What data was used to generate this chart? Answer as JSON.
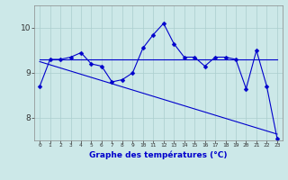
{
  "xlabel": "Graphe des températures (°C)",
  "background_color": "#cce8e8",
  "line_color": "#0000cc",
  "x_hours": [
    0,
    1,
    2,
    3,
    4,
    5,
    6,
    7,
    8,
    9,
    10,
    11,
    12,
    13,
    14,
    15,
    16,
    17,
    18,
    19,
    20,
    21,
    22,
    23
  ],
  "temp_main": [
    8.7,
    9.3,
    9.3,
    9.35,
    9.45,
    9.2,
    9.15,
    8.8,
    8.85,
    9.0,
    9.55,
    9.85,
    10.1,
    9.65,
    9.35,
    9.35,
    9.15,
    9.35,
    9.35,
    9.3,
    8.65,
    9.5,
    8.7,
    7.55
  ],
  "temp_flat": [
    9.3,
    9.3,
    9.3,
    9.3,
    9.3,
    9.3,
    9.3,
    9.3,
    9.3,
    9.3,
    9.3,
    9.3,
    9.3,
    9.3,
    9.3,
    9.3,
    9.3,
    9.3,
    9.3,
    9.3,
    9.3,
    9.3,
    9.3,
    9.3
  ],
  "temp_diag": [
    9.25,
    9.18,
    9.11,
    9.04,
    8.97,
    8.9,
    8.83,
    8.76,
    8.69,
    8.62,
    8.55,
    8.48,
    8.41,
    8.34,
    8.27,
    8.2,
    8.13,
    8.06,
    7.99,
    7.92,
    7.85,
    7.78,
    7.71,
    7.64
  ],
  "ylim": [
    7.5,
    10.5
  ],
  "yticks": [
    8,
    9,
    10
  ],
  "grid_color": "#aacece",
  "marker": "D",
  "markersize": 2.5,
  "linewidth": 0.8
}
